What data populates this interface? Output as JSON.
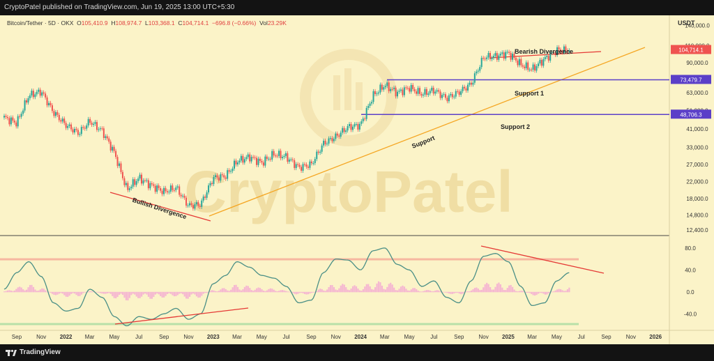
{
  "header": {
    "published_text": "CryptoPatel published on TradingView.com, Jun 19, 2025 13:00 UTC+5:30"
  },
  "legend": {
    "symbol": "Bitcoin/Tether · 5D · OKX",
    "open_label": "O",
    "open": "105,410.9",
    "high_label": "H",
    "high": "108,974.7",
    "low_label": "L",
    "low": "103,368.1",
    "close_label": "C",
    "close": "104,714.1",
    "change": "−696.8 (−0.66%)",
    "vol_label": "Vol",
    "vol": "23.29K"
  },
  "currency": "USDT",
  "watermark": "CryptoPatel",
  "footer": {
    "brand": "TradingView"
  },
  "colors": {
    "background": "#fbf3c8",
    "up": "#26a69a",
    "down": "#ef5350",
    "support_line": "#5b3fc8",
    "trend_line": "#f5a623",
    "divergence_line": "#e53935",
    "osc_line": "#4a8f86",
    "osc_hist": "#f4a7d3",
    "band_upper": "#f6b7a0",
    "band_lower": "#b8e0a8"
  },
  "chart_data": [
    {
      "type": "candlestick",
      "title": "",
      "y_axis_ticks": [
        "140,000.0",
        "110,000.0",
        "90,000.0",
        "63,000.0",
        "51,000.0",
        "41,000.0",
        "33,000.0",
        "27,000.0",
        "22,000.0",
        "18,000.0",
        "14,800.0",
        "12,400.0"
      ],
      "y_scale": "log",
      "x_axis_ticks": [
        "Sep",
        "Nov",
        "2022",
        "Mar",
        "May",
        "Jul",
        "Sep",
        "Nov",
        "2023",
        "Mar",
        "May",
        "Jul",
        "Sep",
        "Nov",
        "2024",
        "Mar",
        "May",
        "Jul",
        "Sep",
        "Nov",
        "2025",
        "Mar",
        "May",
        "Jul",
        "Sep",
        "Nov",
        "2026"
      ],
      "price_series": {
        "x": [
          "2021-08",
          "2021-09",
          "2021-10",
          "2021-11",
          "2021-12",
          "2022-01",
          "2022-02",
          "2022-03",
          "2022-04",
          "2022-05",
          "2022-06",
          "2022-07",
          "2022-08",
          "2022-09",
          "2022-10",
          "2022-11",
          "2022-12",
          "2023-01",
          "2023-02",
          "2023-03",
          "2023-04",
          "2023-05",
          "2023-06",
          "2023-07",
          "2023-08",
          "2023-09",
          "2023-10",
          "2023-11",
          "2023-12",
          "2024-01",
          "2024-02",
          "2024-03",
          "2024-04",
          "2024-05",
          "2024-06",
          "2024-07",
          "2024-08",
          "2024-09",
          "2024-10",
          "2024-11",
          "2024-12",
          "2025-01",
          "2025-02",
          "2025-03",
          "2025-04",
          "2025-05",
          "2025-06"
        ],
        "y": [
          47000,
          44000,
          61000,
          64000,
          50000,
          43000,
          39000,
          45000,
          40000,
          31000,
          20000,
          23000,
          21000,
          19500,
          20500,
          16500,
          16800,
          23000,
          23500,
          28000,
          29500,
          27500,
          30500,
          29500,
          26000,
          27000,
          34500,
          37500,
          42000,
          43000,
          61000,
          69000,
          63000,
          67000,
          62000,
          65000,
          59000,
          63500,
          70000,
          96000,
          97000,
          101000,
          88000,
          83000,
          94000,
          104000,
          104714
        ]
      },
      "price_labels": [
        {
          "text": "104,714.1",
          "color": "#ef5350",
          "y": 104714
        },
        {
          "text": "73,479.7",
          "color": "#5b3fc8",
          "y": 73479.7
        },
        {
          "text": "48,706.3",
          "color": "#5b3fc8",
          "y": 48706.3
        }
      ],
      "annotations": [
        {
          "text": "Bearish Divergence"
        },
        {
          "text": "Support 1"
        },
        {
          "text": "Support 2"
        },
        {
          "text": "Support"
        },
        {
          "text": "Bullish Divergence"
        }
      ],
      "horizontal_levels": [
        73479.7,
        48706.3
      ]
    },
    {
      "type": "line",
      "title": "",
      "y_axis_ticks": [
        "80.0",
        "40.0",
        "0.0",
        "-40.0"
      ],
      "ylim": [
        -65,
        95
      ],
      "bands": [
        60,
        -58
      ],
      "oscillator": {
        "x": [
          "2021-08",
          "2021-09",
          "2021-10",
          "2021-11",
          "2021-12",
          "2022-01",
          "2022-02",
          "2022-03",
          "2022-04",
          "2022-05",
          "2022-06",
          "2022-07",
          "2022-08",
          "2022-09",
          "2022-10",
          "2022-11",
          "2022-12",
          "2023-01",
          "2023-02",
          "2023-03",
          "2023-04",
          "2023-05",
          "2023-06",
          "2023-07",
          "2023-08",
          "2023-09",
          "2023-10",
          "2023-11",
          "2023-12",
          "2024-01",
          "2024-02",
          "2024-03",
          "2024-04",
          "2024-05",
          "2024-06",
          "2024-07",
          "2024-08",
          "2024-09",
          "2024-10",
          "2024-11",
          "2024-12",
          "2025-01",
          "2025-02",
          "2025-03",
          "2025-04",
          "2025-05",
          "2025-06"
        ],
        "y": [
          5,
          35,
          55,
          28,
          -20,
          -35,
          -30,
          5,
          -10,
          -45,
          -62,
          -45,
          -50,
          -40,
          -30,
          -50,
          -40,
          15,
          30,
          55,
          45,
          30,
          25,
          10,
          -20,
          -15,
          35,
          60,
          58,
          40,
          75,
          80,
          50,
          40,
          10,
          20,
          -10,
          -20,
          20,
          65,
          70,
          55,
          10,
          -25,
          -20,
          20,
          35
        ]
      },
      "divergence_lines": [
        {
          "type": "bullish"
        },
        {
          "type": "bearish"
        }
      ]
    }
  ]
}
